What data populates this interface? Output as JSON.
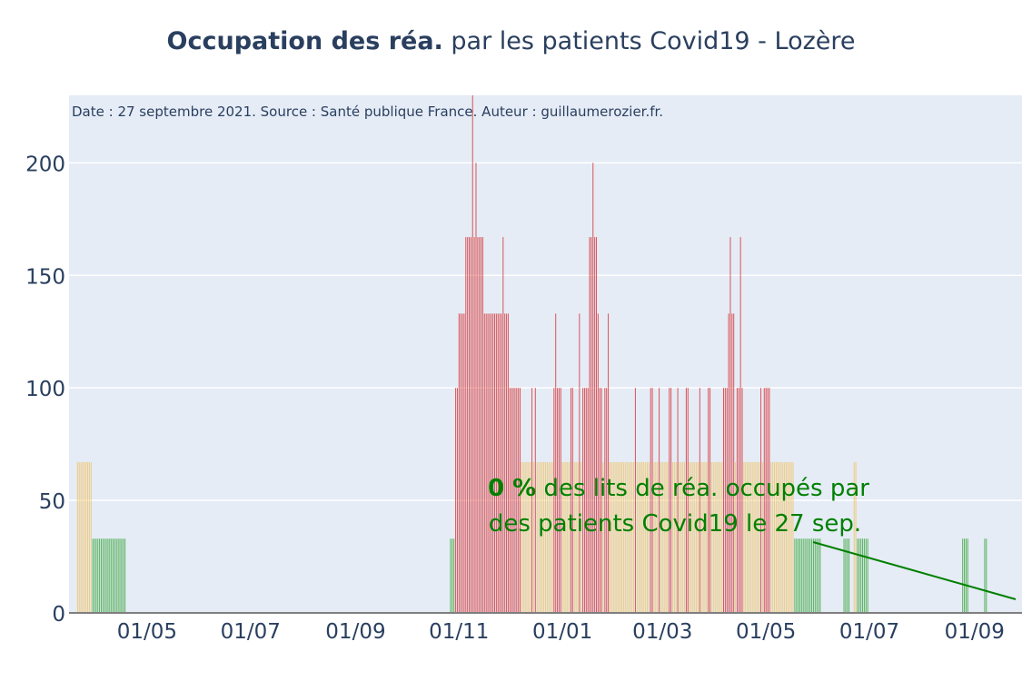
{
  "title": {
    "bold": "Occupation des réa.",
    "rest": " par les patients Covid19 - Lozère"
  },
  "chart_data": {
    "type": "bar",
    "source_note": "Date : 27 septembre 2021. Source : Santé publique France. Auteur : guillaumerozier.fr.",
    "y_ticks": [
      "0",
      "50",
      "100",
      "150",
      "200"
    ],
    "ylim": [
      0,
      230
    ],
    "x_ticks": [
      {
        "date": "2020-05-01",
        "label": "01/05"
      },
      {
        "date": "2020-07-01",
        "label": "01/07"
      },
      {
        "date": "2020-09-01",
        "label": "01/09"
      },
      {
        "date": "2020-11-01",
        "label": "01/11"
      },
      {
        "date": "2021-01-01",
        "label": "01/01"
      },
      {
        "date": "2021-03-01",
        "label": "01/03"
      },
      {
        "date": "2021-05-01",
        "label": "01/05"
      },
      {
        "date": "2021-07-01",
        "label": "01/07"
      },
      {
        "date": "2021-09-01",
        "label": "01/09"
      }
    ],
    "xlim": [
      "2020-03-16",
      "2021-09-29"
    ],
    "color_levels": [
      {
        "max": 40,
        "color": "#2ca02c"
      },
      {
        "max": 70,
        "color": "#f0c05a"
      },
      {
        "max": 9999,
        "color": "#d62728"
      }
    ],
    "series_segments": [
      {
        "start": "2020-03-21",
        "values": [
          67,
          67,
          67,
          67,
          67,
          67,
          67,
          67,
          67,
          33,
          33,
          33,
          33,
          33,
          33,
          33,
          33,
          33,
          33,
          33,
          33,
          33,
          33,
          33,
          33,
          33,
          33,
          33,
          33
        ]
      },
      {
        "start": "2020-10-27",
        "values": [
          33,
          33,
          33,
          100,
          100,
          133,
          133,
          133,
          133,
          167,
          167,
          167,
          167,
          233,
          167,
          200,
          167,
          167,
          167,
          167,
          133,
          133,
          133,
          133,
          133,
          133,
          133,
          133,
          133,
          133,
          133,
          167,
          133,
          133,
          133,
          100,
          100,
          100,
          100,
          100,
          100,
          100,
          67,
          67,
          67,
          67,
          67,
          67,
          100,
          67,
          100,
          67,
          67,
          67,
          67,
          67,
          67,
          67,
          67,
          67,
          67,
          100,
          133,
          100,
          100,
          100,
          67,
          67,
          67,
          67,
          67,
          100,
          100,
          67,
          67,
          67,
          133,
          67,
          100,
          100,
          100,
          100,
          167,
          167,
          200,
          167,
          167,
          133,
          100,
          100,
          67,
          100,
          100,
          133,
          67,
          67,
          67,
          67,
          67,
          67,
          67,
          67,
          67,
          67,
          67,
          67,
          67,
          67,
          67,
          100,
          67,
          67,
          67,
          67,
          67,
          67,
          67,
          67,
          100,
          100,
          67,
          67,
          67,
          100,
          67,
          67,
          67,
          67,
          67,
          100,
          100,
          67,
          67,
          67,
          100,
          67,
          67,
          67,
          67,
          100,
          100,
          67,
          67,
          67,
          67,
          67,
          67,
          100,
          67,
          67,
          67,
          67,
          100,
          100,
          67,
          67,
          67,
          67,
          67,
          67,
          67,
          100,
          100,
          100,
          133,
          167,
          133,
          133,
          67,
          100,
          100,
          167,
          100,
          67,
          67,
          67,
          67,
          67,
          67,
          67,
          67,
          67,
          67,
          100,
          67,
          100,
          100,
          100,
          100,
          67,
          67,
          67,
          67,
          67,
          67,
          67,
          67,
          67,
          67,
          67,
          67,
          67,
          67,
          33,
          33,
          33,
          33,
          33,
          33,
          33,
          33,
          33,
          33,
          33,
          33,
          33,
          33,
          33,
          33
        ]
      },
      {
        "start": "2021-06-16",
        "values": [
          33,
          33,
          33,
          33,
          0,
          0,
          67,
          67,
          33,
          33,
          33,
          33,
          33,
          33,
          33
        ]
      },
      {
        "start": "2021-08-25",
        "values": [
          33,
          33,
          33,
          33
        ]
      },
      {
        "start": "2021-09-07",
        "values": [
          33,
          33
        ]
      }
    ],
    "annotation": {
      "percent": "0  %",
      "line1": " des lits de réa. occupés par",
      "line2": "des patients Covid19 le 27 sep.",
      "color": "#008000"
    }
  }
}
